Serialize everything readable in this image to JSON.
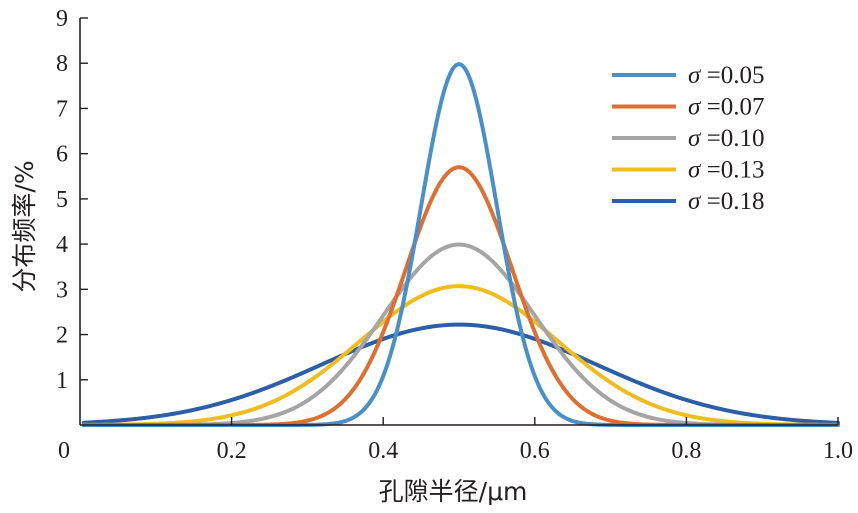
{
  "chart_data": {
    "type": "line",
    "title": "",
    "xlabel": "孔隙半径/μm",
    "ylabel": "分布频率/%",
    "xlim": [
      0,
      1.0
    ],
    "ylim": [
      0,
      9
    ],
    "x_origin_label": "0",
    "x_ticks": [
      0.2,
      0.4,
      0.6,
      0.8,
      1.0
    ],
    "x_tick_labels": [
      "0.2",
      "0.4",
      "0.6",
      "0.8",
      "1.0"
    ],
    "y_ticks": [
      1,
      2,
      3,
      4,
      5,
      6,
      7,
      8,
      9
    ],
    "y_tick_labels": [
      "1",
      "2",
      "3",
      "4",
      "5",
      "6",
      "7",
      "8",
      "9"
    ],
    "grid": false,
    "legend_position": "top-right",
    "series_shape": "normal distribution centered at x = 0.50",
    "series": [
      {
        "name": "σ =0.05",
        "symbol": "σ",
        "value_text": "=0.05",
        "mean": 0.5,
        "sigma": 0.05,
        "peak": 7.98,
        "color": "#4a90c8"
      },
      {
        "name": "σ =0.07",
        "symbol": "σ",
        "value_text": "=0.07",
        "mean": 0.5,
        "sigma": 0.07,
        "peak": 5.7,
        "color": "#dd7031"
      },
      {
        "name": "σ =0.10",
        "symbol": "σ",
        "value_text": "=0.10",
        "mean": 0.5,
        "sigma": 0.1,
        "peak": 3.99,
        "color": "#a5a5a5"
      },
      {
        "name": "σ =0.13",
        "symbol": "σ",
        "value_text": "=0.13",
        "mean": 0.5,
        "sigma": 0.13,
        "peak": 3.07,
        "color": "#f0bc1e"
      },
      {
        "name": "σ =0.18",
        "symbol": "σ",
        "value_text": "=0.18",
        "mean": 0.5,
        "sigma": 0.18,
        "peak": 2.22,
        "color": "#2d5fa8"
      }
    ]
  }
}
